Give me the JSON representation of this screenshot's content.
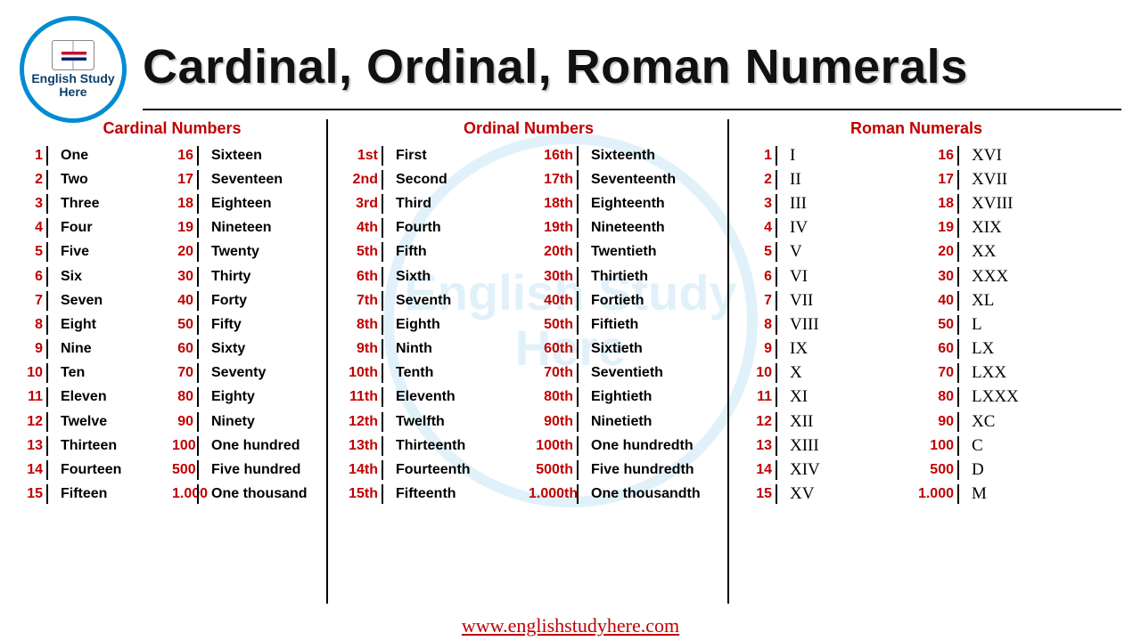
{
  "title": "Cardinal, Ordinal, Roman Numerals",
  "logo": {
    "line1": "English Study",
    "line2": "Here"
  },
  "footer": "www.englishstudyhere.com",
  "watermark": "English Study\nHere",
  "sections": {
    "cardinal": {
      "title": "Cardinal Numbers",
      "left": [
        {
          "n": "1",
          "w": "One"
        },
        {
          "n": "2",
          "w": "Two"
        },
        {
          "n": "3",
          "w": "Three"
        },
        {
          "n": "4",
          "w": "Four"
        },
        {
          "n": "5",
          "w": "Five"
        },
        {
          "n": "6",
          "w": "Six"
        },
        {
          "n": "7",
          "w": "Seven"
        },
        {
          "n": "8",
          "w": "Eight"
        },
        {
          "n": "9",
          "w": "Nine"
        },
        {
          "n": "10",
          "w": "Ten"
        },
        {
          "n": "11",
          "w": "Eleven"
        },
        {
          "n": "12",
          "w": "Twelve"
        },
        {
          "n": "13",
          "w": "Thirteen"
        },
        {
          "n": "14",
          "w": "Fourteen"
        },
        {
          "n": "15",
          "w": "Fifteen"
        }
      ],
      "right": [
        {
          "n": "16",
          "w": "Sixteen"
        },
        {
          "n": "17",
          "w": "Seventeen"
        },
        {
          "n": "18",
          "w": "Eighteen"
        },
        {
          "n": "19",
          "w": "Nineteen"
        },
        {
          "n": "20",
          "w": "Twenty"
        },
        {
          "n": "30",
          "w": "Thirty"
        },
        {
          "n": "40",
          "w": "Forty"
        },
        {
          "n": "50",
          "w": "Fifty"
        },
        {
          "n": "60",
          "w": "Sixty"
        },
        {
          "n": "70",
          "w": "Seventy"
        },
        {
          "n": "80",
          "w": "Eighty"
        },
        {
          "n": "90",
          "w": "Ninety"
        },
        {
          "n": "100",
          "w": "One hundred"
        },
        {
          "n": "500",
          "w": "Five hundred"
        },
        {
          "n": "1.000",
          "w": "One thousand"
        }
      ]
    },
    "ordinal": {
      "title": "Ordinal Numbers",
      "left": [
        {
          "n": "1st",
          "w": "First"
        },
        {
          "n": "2nd",
          "w": "Second"
        },
        {
          "n": "3rd",
          "w": "Third"
        },
        {
          "n": "4th",
          "w": "Fourth"
        },
        {
          "n": "5th",
          "w": "Fifth"
        },
        {
          "n": "6th",
          "w": "Sixth"
        },
        {
          "n": "7th",
          "w": "Seventh"
        },
        {
          "n": "8th",
          "w": "Eighth"
        },
        {
          "n": "9th",
          "w": "Ninth"
        },
        {
          "n": "10th",
          "w": "Tenth"
        },
        {
          "n": "11th",
          "w": "Eleventh"
        },
        {
          "n": "12th",
          "w": "Twelfth"
        },
        {
          "n": "13th",
          "w": "Thirteenth"
        },
        {
          "n": "14th",
          "w": "Fourteenth"
        },
        {
          "n": "15th",
          "w": "Fifteenth"
        }
      ],
      "right": [
        {
          "n": "16th",
          "w": "Sixteenth"
        },
        {
          "n": "17th",
          "w": "Seventeenth"
        },
        {
          "n": "18th",
          "w": "Eighteenth"
        },
        {
          "n": "19th",
          "w": "Nineteenth"
        },
        {
          "n": "20th",
          "w": "Twentieth"
        },
        {
          "n": "30th",
          "w": "Thirtieth"
        },
        {
          "n": "40th",
          "w": "Fortieth"
        },
        {
          "n": "50th",
          "w": "Fiftieth"
        },
        {
          "n": "60th",
          "w": "Sixtieth"
        },
        {
          "n": "70th",
          "w": "Seventieth"
        },
        {
          "n": "80th",
          "w": "Eightieth"
        },
        {
          "n": "90th",
          "w": "Ninetieth"
        },
        {
          "n": "100th",
          "w": "One hundredth"
        },
        {
          "n": "500th",
          "w": "Five hundredth"
        },
        {
          "n": "1.000th",
          "w": "One thousandth"
        }
      ]
    },
    "roman": {
      "title": "Roman Numerals",
      "left": [
        {
          "n": "1",
          "w": "I"
        },
        {
          "n": "2",
          "w": "II"
        },
        {
          "n": "3",
          "w": "III"
        },
        {
          "n": "4",
          "w": "IV"
        },
        {
          "n": "5",
          "w": "V"
        },
        {
          "n": "6",
          "w": "VI"
        },
        {
          "n": "7",
          "w": "VII"
        },
        {
          "n": "8",
          "w": "VIII"
        },
        {
          "n": "9",
          "w": "IX"
        },
        {
          "n": "10",
          "w": "X"
        },
        {
          "n": "11",
          "w": "XI"
        },
        {
          "n": "12",
          "w": "XII"
        },
        {
          "n": "13",
          "w": "XIII"
        },
        {
          "n": "14",
          "w": "XIV"
        },
        {
          "n": "15",
          "w": "XV"
        }
      ],
      "right": [
        {
          "n": "16",
          "w": "XVI"
        },
        {
          "n": "17",
          "w": "XVII"
        },
        {
          "n": "18",
          "w": "XVIII"
        },
        {
          "n": "19",
          "w": "XIX"
        },
        {
          "n": "20",
          "w": "XX"
        },
        {
          "n": "30",
          "w": "XXX"
        },
        {
          "n": "40",
          "w": "XL"
        },
        {
          "n": "50",
          "w": "L"
        },
        {
          "n": "60",
          "w": "LX"
        },
        {
          "n": "70",
          "w": "LXX"
        },
        {
          "n": "80",
          "w": "LXXX"
        },
        {
          "n": "90",
          "w": "XC"
        },
        {
          "n": "100",
          "w": "C"
        },
        {
          "n": "500",
          "w": "D"
        },
        {
          "n": "1.000",
          "w": "M"
        }
      ]
    }
  },
  "colors": {
    "accent": "#c00000",
    "primary": "#008cd2",
    "text": "#000"
  }
}
